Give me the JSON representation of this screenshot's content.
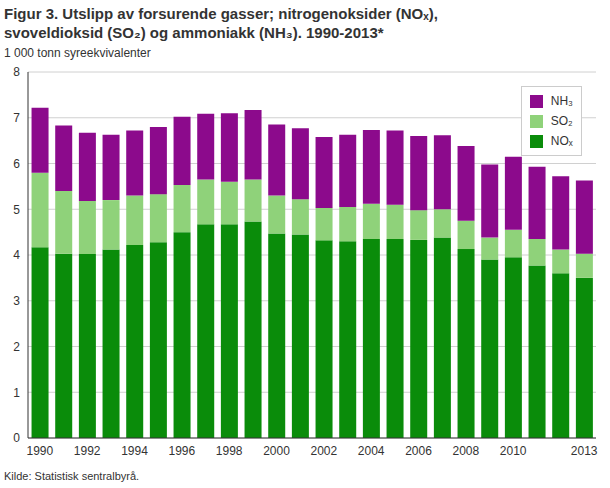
{
  "chart_data": {
    "type": "bar",
    "title": "Figur 3. Utslipp av forsurende gasser; nitrogenoksider (NOₓ), svoveldioksid (SO₂) og ammoniakk (NH₃). 1990-2013*",
    "y_label": "1 000 tonn syreekvivalenter",
    "source": "Kilde: Statistisk sentralbyrå.",
    "categories": [
      "1990",
      null,
      "1992",
      null,
      "1994",
      null,
      "1996",
      null,
      "1998",
      null,
      "2000",
      null,
      "2002",
      null,
      "2004",
      null,
      "2006",
      null,
      "2008",
      null,
      "2010",
      null,
      null,
      "2013"
    ],
    "series": [
      {
        "name": "NOₓ",
        "color": "#0a8c0a",
        "values": [
          4.17,
          4.03,
          4.02,
          4.12,
          4.22,
          4.28,
          4.5,
          4.67,
          4.67,
          4.73,
          4.47,
          4.45,
          4.32,
          4.3,
          4.35,
          4.35,
          4.33,
          4.38,
          4.13,
          3.9,
          3.95,
          3.77,
          3.6,
          3.5
        ]
      },
      {
        "name": "SO₂",
        "color": "#8fd27a",
        "values": [
          1.63,
          1.37,
          1.16,
          1.08,
          1.08,
          1.05,
          1.03,
          0.98,
          0.93,
          0.92,
          0.83,
          0.77,
          0.71,
          0.75,
          0.77,
          0.75,
          0.65,
          0.62,
          0.62,
          0.48,
          0.6,
          0.58,
          0.52,
          0.53
        ]
      },
      {
        "name": "NH₃",
        "color": "#8c0a8c",
        "values": [
          1.42,
          1.43,
          1.49,
          1.43,
          1.42,
          1.47,
          1.49,
          1.44,
          1.5,
          1.52,
          1.55,
          1.55,
          1.55,
          1.58,
          1.61,
          1.62,
          1.62,
          1.62,
          1.63,
          1.6,
          1.6,
          1.58,
          1.6,
          1.6
        ]
      }
    ],
    "ylim": [
      0,
      8
    ],
    "yticks": [
      0,
      1,
      2,
      3,
      4,
      5,
      6,
      7,
      8
    ],
    "stacked": true,
    "grid": true,
    "legend": "upper right"
  }
}
